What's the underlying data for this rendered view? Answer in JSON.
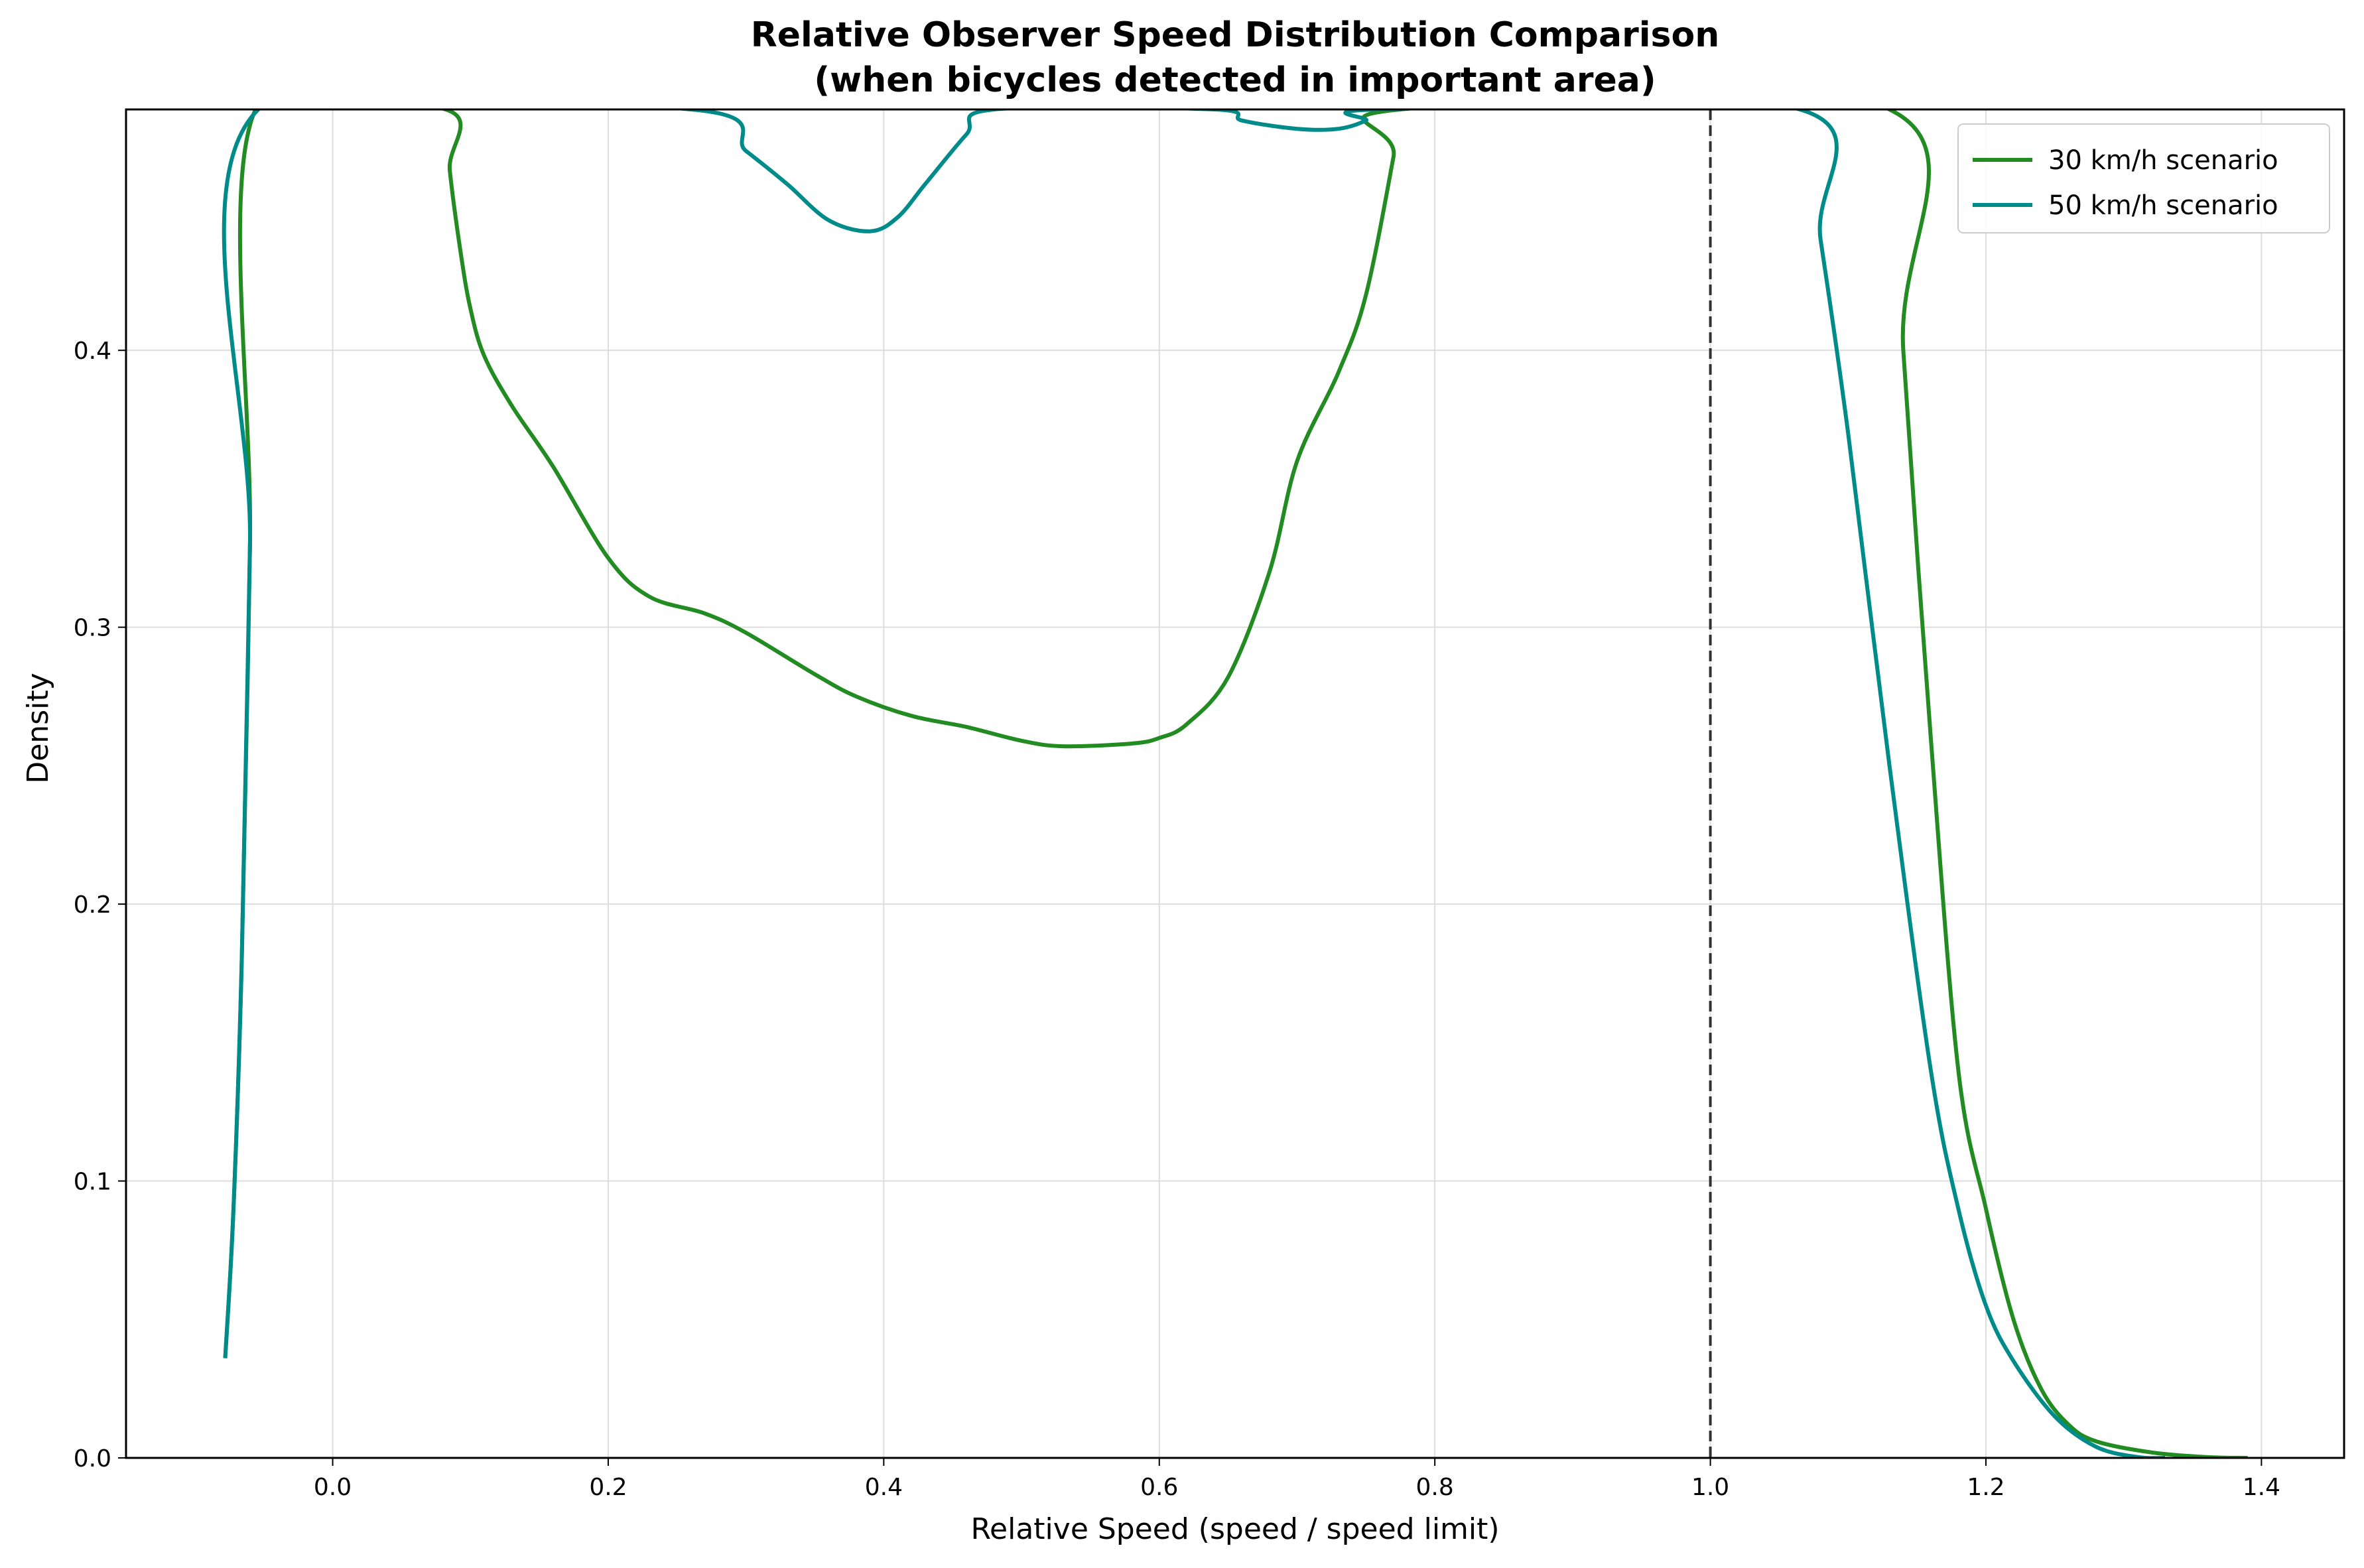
{
  "chart_data": {
    "type": "line",
    "title": "Relative Observer Speed Distribution Comparison",
    "subtitle": "(when bicycles detected in important area)",
    "xlabel": "Relative Speed (speed / speed limit)",
    "ylabel": "Density",
    "xlim": [
      -0.15,
      1.46
    ],
    "ylim": [
      0.0,
      0.487
    ],
    "x_ticks": [
      0.0,
      0.2,
      0.4,
      0.6,
      0.8,
      1.0,
      1.2,
      1.4
    ],
    "x_tick_labels": [
      "0.0",
      "0.2",
      "0.4",
      "0.6",
      "0.8",
      "1.0",
      "1.2",
      "1.4"
    ],
    "y_ticks": [
      0.0,
      0.1,
      0.2,
      0.3,
      0.4
    ],
    "y_tick_labels": [
      "0.0",
      "0.1",
      "0.2",
      "0.3",
      "0.4"
    ],
    "grid": true,
    "legend_position": "top-right",
    "reference_line": {
      "x": 1.0,
      "style": "dashed",
      "color": "#333333"
    },
    "series": [
      {
        "name": "30 km/h scenario",
        "color": "#228B22",
        "points": [
          [
            -0.078,
            0.036
          ],
          [
            -0.072,
            0.09
          ],
          [
            -0.066,
            0.18
          ],
          [
            -0.06,
            0.33
          ],
          [
            -0.056,
            0.487
          ],
          [
            0.082,
            0.487
          ],
          [
            0.085,
            0.465
          ],
          [
            0.093,
            0.435
          ],
          [
            0.1,
            0.415
          ],
          [
            0.11,
            0.398
          ],
          [
            0.13,
            0.38
          ],
          [
            0.16,
            0.358
          ],
          [
            0.2,
            0.325
          ],
          [
            0.23,
            0.311
          ],
          [
            0.27,
            0.305
          ],
          [
            0.3,
            0.298
          ],
          [
            0.35,
            0.283
          ],
          [
            0.38,
            0.275
          ],
          [
            0.42,
            0.268
          ],
          [
            0.46,
            0.264
          ],
          [
            0.5,
            0.259
          ],
          [
            0.53,
            0.257
          ],
          [
            0.58,
            0.258
          ],
          [
            0.6,
            0.26
          ],
          [
            0.62,
            0.265
          ],
          [
            0.65,
            0.282
          ],
          [
            0.68,
            0.32
          ],
          [
            0.7,
            0.36
          ],
          [
            0.73,
            0.392
          ],
          [
            0.75,
            0.42
          ],
          [
            0.77,
            0.47
          ],
          [
            0.775,
            0.487
          ],
          [
            1.13,
            0.487
          ],
          [
            1.14,
            0.4
          ],
          [
            1.16,
            0.26
          ],
          [
            1.18,
            0.14
          ],
          [
            1.2,
            0.09
          ],
          [
            1.22,
            0.05
          ],
          [
            1.24,
            0.025
          ],
          [
            1.26,
            0.012
          ],
          [
            1.28,
            0.006
          ],
          [
            1.32,
            0.002
          ],
          [
            1.36,
            0.0003
          ],
          [
            1.39,
            0.0
          ]
        ]
      },
      {
        "name": "50 km/h scenario",
        "color": "#008B8B",
        "points": [
          [
            -0.078,
            0.036
          ],
          [
            -0.072,
            0.09
          ],
          [
            -0.066,
            0.18
          ],
          [
            -0.06,
            0.33
          ],
          [
            -0.054,
            0.487
          ],
          [
            0.26,
            0.487
          ],
          [
            0.3,
            0.472
          ],
          [
            0.33,
            0.46
          ],
          [
            0.36,
            0.447
          ],
          [
            0.39,
            0.443
          ],
          [
            0.41,
            0.448
          ],
          [
            0.43,
            0.46
          ],
          [
            0.46,
            0.478
          ],
          [
            0.48,
            0.487
          ],
          [
            0.64,
            0.487
          ],
          [
            0.66,
            0.483
          ],
          [
            0.7,
            0.48
          ],
          [
            0.73,
            0.48
          ],
          [
            0.75,
            0.483
          ],
          [
            0.76,
            0.487
          ],
          [
            1.065,
            0.487
          ],
          [
            1.08,
            0.44
          ],
          [
            1.1,
            0.37
          ],
          [
            1.13,
            0.25
          ],
          [
            1.16,
            0.14
          ],
          [
            1.18,
            0.09
          ],
          [
            1.2,
            0.055
          ],
          [
            1.22,
            0.035
          ],
          [
            1.25,
            0.015
          ],
          [
            1.28,
            0.004
          ],
          [
            1.31,
            0.0003
          ],
          [
            1.33,
            0.0
          ]
        ]
      }
    ]
  }
}
